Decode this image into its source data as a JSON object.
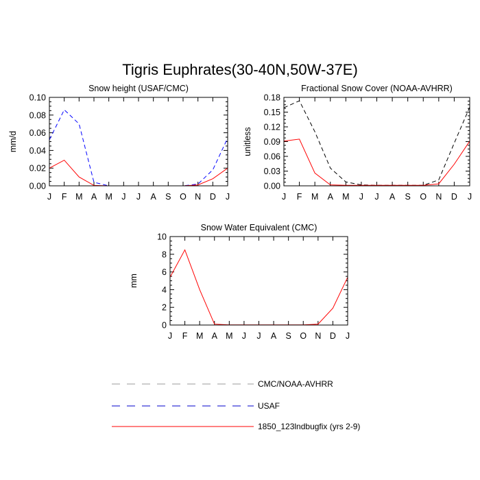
{
  "title": "Tigris Euphrates(30-40N,50W-37E)",
  "months": [
    "J",
    "F",
    "M",
    "A",
    "M",
    "J",
    "J",
    "A",
    "S",
    "O",
    "N",
    "D",
    "J"
  ],
  "colors": {
    "obs_black": "#000000",
    "usaf_blue": "#0000ff",
    "model_red": "#ff0000"
  },
  "chart_data": [
    {
      "type": "line",
      "title": "Snow height (USAF/CMC)",
      "ylabel": "mm/d",
      "ylim": [
        0,
        0.1
      ],
      "yticks": [
        "0.00",
        "0.02",
        "0.04",
        "0.06",
        "0.08",
        "0.10"
      ],
      "categories": [
        "J",
        "F",
        "M",
        "A",
        "M",
        "J",
        "J",
        "A",
        "S",
        "O",
        "N",
        "D",
        "J"
      ],
      "series": [
        {
          "name": "CMC/NOAA-AVHRR",
          "color": "#000000",
          "dash": "dash",
          "values": [
            0,
            0,
            0,
            0,
            0,
            0,
            0,
            0,
            0,
            0,
            0,
            0,
            0
          ]
        },
        {
          "name": "USAF",
          "color": "#0000ff",
          "dash": "dash",
          "values": [
            0.052,
            0.086,
            0.07,
            0.004,
            0,
            0,
            0,
            0,
            0,
            0,
            0.002,
            0.018,
            0.054
          ]
        },
        {
          "name": "1850_123lndbugfix (yrs 2-9)",
          "color": "#ff0000",
          "dash": "solid",
          "values": [
            0.02,
            0.029,
            0.01,
            0.0005,
            0,
            0,
            0,
            0,
            0,
            0,
            0.001,
            0.008,
            0.02
          ]
        }
      ]
    },
    {
      "type": "line",
      "title": "Fractional Snow Cover (NOAA-AVHRR)",
      "ylabel": "unitless",
      "ylim": [
        0,
        0.18
      ],
      "yticks": [
        "0.00",
        "0.03",
        "0.06",
        "0.09",
        "0.12",
        "0.15",
        "0.18"
      ],
      "categories": [
        "J",
        "F",
        "M",
        "A",
        "M",
        "J",
        "J",
        "A",
        "S",
        "O",
        "N",
        "D",
        "J"
      ],
      "series": [
        {
          "name": "CMC/NOAA-AVHRR",
          "color": "#000000",
          "dash": "dash",
          "values": [
            0.159,
            0.173,
            0.11,
            0.036,
            0.008,
            0.002,
            0.001,
            0.001,
            0.001,
            0.001,
            0.012,
            0.087,
            0.16
          ]
        },
        {
          "name": "1850_123lndbugfix (yrs 2-9)",
          "color": "#ff0000",
          "dash": "solid",
          "values": [
            0.091,
            0.095,
            0.026,
            0.002,
            0.001,
            0.001,
            0.001,
            0.001,
            0.001,
            0.001,
            0.004,
            0.044,
            0.091
          ]
        }
      ]
    },
    {
      "type": "line",
      "title": "Snow Water Equivalent (CMC)",
      "ylabel": "mm",
      "ylim": [
        0,
        10
      ],
      "yticks": [
        "0",
        "2",
        "4",
        "6",
        "8",
        "10"
      ],
      "categories": [
        "J",
        "F",
        "M",
        "A",
        "M",
        "J",
        "J",
        "A",
        "S",
        "O",
        "N",
        "D",
        "J"
      ],
      "series": [
        {
          "name": "CMC/NOAA-AVHRR",
          "color": "#000000",
          "dash": "dash",
          "values": [
            0,
            0,
            0,
            0,
            0,
            0,
            0,
            0,
            0,
            0,
            0,
            0,
            0
          ]
        },
        {
          "name": "1850_123lndbugfix (yrs 2-9)",
          "color": "#ff0000",
          "dash": "solid",
          "values": [
            5.4,
            8.5,
            4.0,
            0.1,
            0.02,
            0.02,
            0.02,
            0.02,
            0.02,
            0.02,
            0.1,
            1.9,
            5.4
          ]
        }
      ]
    }
  ],
  "legend": [
    {
      "label": "CMC/NOAA-AVHRR",
      "color": "#999999",
      "dash": "dash"
    },
    {
      "label": "USAF",
      "color": "#0000cc",
      "dash": "dash"
    },
    {
      "label": "1850_123lndbugfix (yrs 2-9)",
      "color": "#ff0000",
      "dash": "solid"
    }
  ]
}
